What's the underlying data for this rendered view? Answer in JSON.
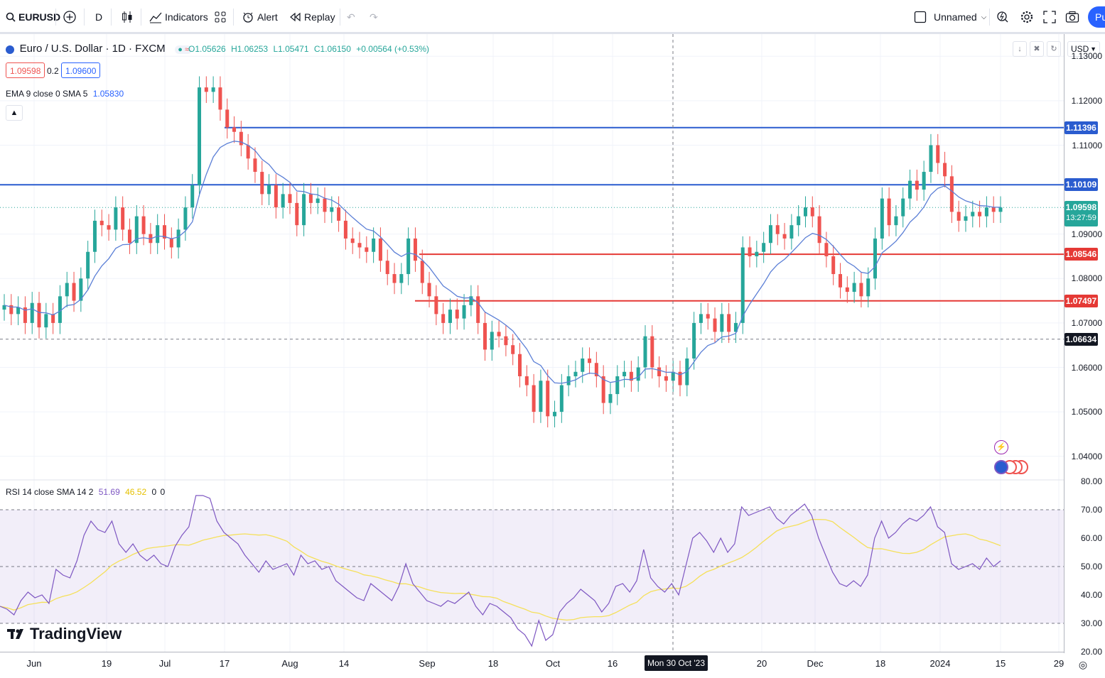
{
  "toolbar": {
    "symbol": "EURUSD",
    "interval": "D",
    "indicators_label": "Indicators",
    "alert_label": "Alert",
    "replay_label": "Replay",
    "layout_name": "Unnamed",
    "publish_label": "Pu"
  },
  "legend": {
    "title": "Euro / U.S. Dollar · 1D · FXCM",
    "open": "O1.05626",
    "high": "H1.06253",
    "low": "L1.05471",
    "close": "C1.06150",
    "change": "+0.00564 (+0.53%)",
    "sell_price": "1.09598",
    "spread": "0.2",
    "buy_price": "1.09600",
    "ema_label": "EMA 9 close 0 SMA 5",
    "ema_value": "1.05830"
  },
  "rsi_legend": {
    "label": "RSI 14 close SMA 14 2",
    "rsi_value": "51.69",
    "sma_value": "46.52",
    "extra1": "0",
    "extra2": "0"
  },
  "price_axis": {
    "currency": "USD",
    "ticks": [
      "1.13000",
      "1.12000",
      "1.11000",
      "1.09000",
      "1.08000",
      "1.07000",
      "1.06000",
      "1.05000",
      "1.04000"
    ],
    "rsi_ticks": [
      "80.00",
      "70.00",
      "60.00",
      "50.00",
      "40.00",
      "30.00",
      "20.00"
    ],
    "tags": [
      {
        "value": "1.11396",
        "color": "#2a5ccf"
      },
      {
        "value": "1.10109",
        "color": "#2a5ccf"
      },
      {
        "value": "1.09598",
        "color": "#26a69a"
      },
      {
        "value": "1.08546",
        "color": "#e53935"
      },
      {
        "value": "1.07497",
        "color": "#e53935"
      },
      {
        "value": "1.06634",
        "color": "#131722"
      }
    ],
    "countdown": "13:27:59"
  },
  "time_axis": {
    "labels": [
      "Jun",
      "19",
      "Jul",
      "17",
      "Aug",
      "14",
      "Sep",
      "18",
      "Oct",
      "16",
      "20",
      "Dec",
      "18",
      "2024",
      "15",
      "29"
    ],
    "crosshair_label": "Mon 30 Oct '23"
  },
  "branding": {
    "logo_text": "TradingView"
  },
  "colors": {
    "up": "#26a69a",
    "down": "#ef5350",
    "ema": "#5b7fd6",
    "rsi": "#7e57c2",
    "rsi_sma": "#f5e05a",
    "hline_blue": "#2a5ccf",
    "hline_red": "#e53935"
  },
  "chart_data": {
    "type": "candlestick",
    "title": "Euro / U.S. Dollar · 1D · FXCM",
    "ylim": [
      1.035,
      1.135
    ],
    "horizontal_lines": [
      1.11396,
      1.10109,
      1.08546,
      1.07497,
      1.06634
    ],
    "closes": [
      1.074,
      1.072,
      1.0735,
      1.07,
      1.0745,
      1.069,
      1.072,
      1.07,
      1.076,
      1.079,
      1.075,
      1.08,
      1.086,
      1.093,
      1.092,
      1.091,
      1.096,
      1.091,
      1.088,
      1.094,
      1.09,
      1.088,
      1.092,
      1.089,
      1.087,
      1.091,
      1.096,
      1.101,
      1.123,
      1.122,
      1.123,
      1.118,
      1.114,
      1.113,
      1.11,
      1.107,
      1.104,
      1.099,
      1.101,
      1.096,
      1.099,
      1.097,
      1.092,
      1.099,
      1.097,
      1.098,
      1.095,
      1.096,
      1.093,
      1.089,
      1.088,
      1.087,
      1.086,
      1.089,
      1.084,
      1.081,
      1.079,
      1.081,
      1.089,
      1.084,
      1.079,
      1.076,
      1.072,
      1.07,
      1.073,
      1.071,
      1.074,
      1.076,
      1.07,
      1.064,
      1.068,
      1.067,
      1.065,
      1.063,
      1.058,
      1.056,
      1.05,
      1.057,
      1.049,
      1.05,
      1.056,
      1.058,
      1.059,
      1.062,
      1.061,
      1.058,
      1.052,
      1.054,
      1.058,
      1.059,
      1.057,
      1.06,
      1.067,
      1.06,
      1.058,
      1.057,
      1.059,
      1.056,
      1.062,
      1.07,
      1.072,
      1.071,
      1.068,
      1.072,
      1.068,
      1.07,
      1.087,
      1.085,
      1.086,
      1.088,
      1.092,
      1.09,
      1.089,
      1.092,
      1.094,
      1.096,
      1.094,
      1.088,
      1.085,
      1.081,
      1.078,
      1.077,
      1.079,
      1.076,
      1.08,
      1.089,
      1.098,
      1.092,
      1.094,
      1.098,
      1.102,
      1.1,
      1.104,
      1.11,
      1.106,
      1.103,
      1.095,
      1.093,
      1.094,
      1.095,
      1.094,
      1.096,
      1.095,
      1.096
    ],
    "rsi": [
      36,
      35,
      33,
      38,
      41,
      39,
      40,
      37,
      49,
      47,
      46,
      52,
      61,
      66,
      63,
      62,
      66,
      58,
      55,
      58,
      54,
      52,
      54,
      51,
      50,
      57,
      61,
      64,
      75,
      75,
      74,
      66,
      62,
      60,
      58,
      54,
      51,
      48,
      52,
      49,
      50,
      51,
      47,
      54,
      51,
      52,
      49,
      50,
      45,
      43,
      41,
      39,
      38,
      44,
      42,
      40,
      38,
      43,
      51,
      44,
      41,
      38,
      37,
      36,
      38,
      37,
      39,
      41,
      36,
      33,
      37,
      36,
      34,
      32,
      28,
      26,
      22,
      31,
      24,
      26,
      34,
      37,
      39,
      42,
      40,
      38,
      34,
      37,
      43,
      44,
      41,
      45,
      56,
      46,
      43,
      41,
      44,
      40,
      50,
      60,
      62,
      59,
      55,
      60,
      55,
      58,
      71,
      68,
      69,
      70,
      71,
      67,
      65,
      68,
      70,
      72,
      68,
      60,
      54,
      48,
      44,
      43,
      45,
      43,
      47,
      60,
      66,
      60,
      62,
      65,
      67,
      66,
      68,
      71,
      64,
      62,
      51,
      49,
      50,
      51,
      49,
      53,
      50,
      52
    ],
    "rsi_ylim": [
      20,
      80
    ]
  }
}
